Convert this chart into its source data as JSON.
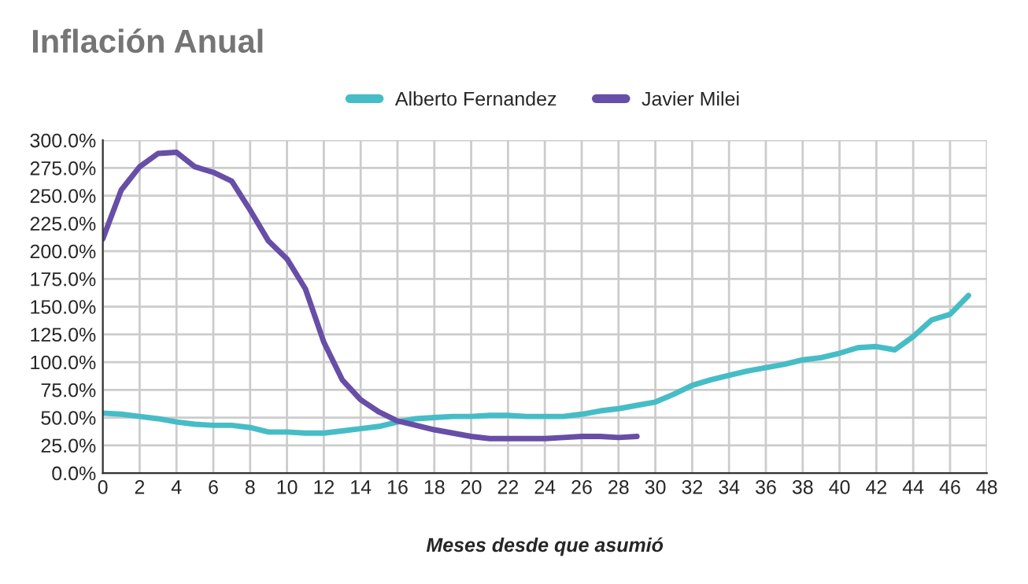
{
  "chart_data": {
    "type": "line",
    "title": "Inflación Anual",
    "xlabel": "Meses desde que asumió",
    "x": [
      0,
      1,
      2,
      3,
      4,
      5,
      6,
      7,
      8,
      9,
      10,
      11,
      12,
      13,
      14,
      15,
      16,
      17,
      18,
      19,
      20,
      21,
      22,
      23,
      24,
      25,
      26,
      27,
      28,
      29,
      30,
      31,
      32,
      33,
      34,
      35,
      36,
      37,
      38,
      39,
      40,
      41,
      42,
      43,
      44,
      45,
      46,
      47
    ],
    "series": [
      {
        "name": "Alberto Fernandez",
        "color": "#46bdc6",
        "values": [
          54,
          53,
          51,
          49,
          46,
          44,
          43,
          43,
          41,
          37,
          37,
          36,
          36,
          38,
          40,
          42,
          46,
          49,
          50,
          51,
          51,
          52,
          52,
          51,
          51,
          51,
          53,
          56,
          58,
          61,
          64,
          71,
          79,
          84,
          88,
          92,
          95,
          98,
          102,
          104,
          108,
          113,
          114,
          111,
          123,
          138,
          143,
          160
        ]
      },
      {
        "name": "Javier Milei",
        "color": "#674ea7",
        "x": [
          0,
          1,
          2,
          3,
          4,
          5,
          6,
          7,
          8,
          9,
          10,
          11,
          12,
          13,
          14,
          15,
          16,
          17,
          18,
          19,
          20,
          21,
          22,
          23,
          24,
          25,
          26,
          27,
          28,
          29
        ],
        "values": [
          211,
          255,
          276,
          288,
          289,
          276,
          271,
          263,
          237,
          209,
          193,
          166,
          118,
          84,
          66,
          55,
          47,
          43,
          39,
          36,
          33,
          31,
          31,
          31,
          31,
          32,
          33,
          33,
          32,
          33
        ]
      }
    ],
    "xlim": [
      0,
      48
    ],
    "xticks": [
      0,
      2,
      4,
      6,
      8,
      10,
      12,
      14,
      16,
      18,
      20,
      22,
      24,
      26,
      28,
      30,
      32,
      34,
      36,
      38,
      40,
      42,
      44,
      46,
      48
    ],
    "ylim": [
      0,
      300
    ],
    "yticks": [
      {
        "value": 0,
        "label": "0.0%"
      },
      {
        "value": 25,
        "label": "25.0%"
      },
      {
        "value": 50,
        "label": "50.0%"
      },
      {
        "value": 75,
        "label": "75.0%"
      },
      {
        "value": 100,
        "label": "100.0%"
      },
      {
        "value": 125,
        "label": "125.0%"
      },
      {
        "value": 150,
        "label": "150.0%"
      },
      {
        "value": 175,
        "label": "175.0%"
      },
      {
        "value": 200,
        "label": "200.0%"
      },
      {
        "value": 225,
        "label": "225.0%"
      },
      {
        "value": 250,
        "label": "250.0%"
      },
      {
        "value": 275,
        "label": "275.0%"
      },
      {
        "value": 300,
        "label": "300.0%"
      }
    ],
    "grid": true,
    "legend": "top",
    "marker": "none",
    "line_style": "solid"
  }
}
